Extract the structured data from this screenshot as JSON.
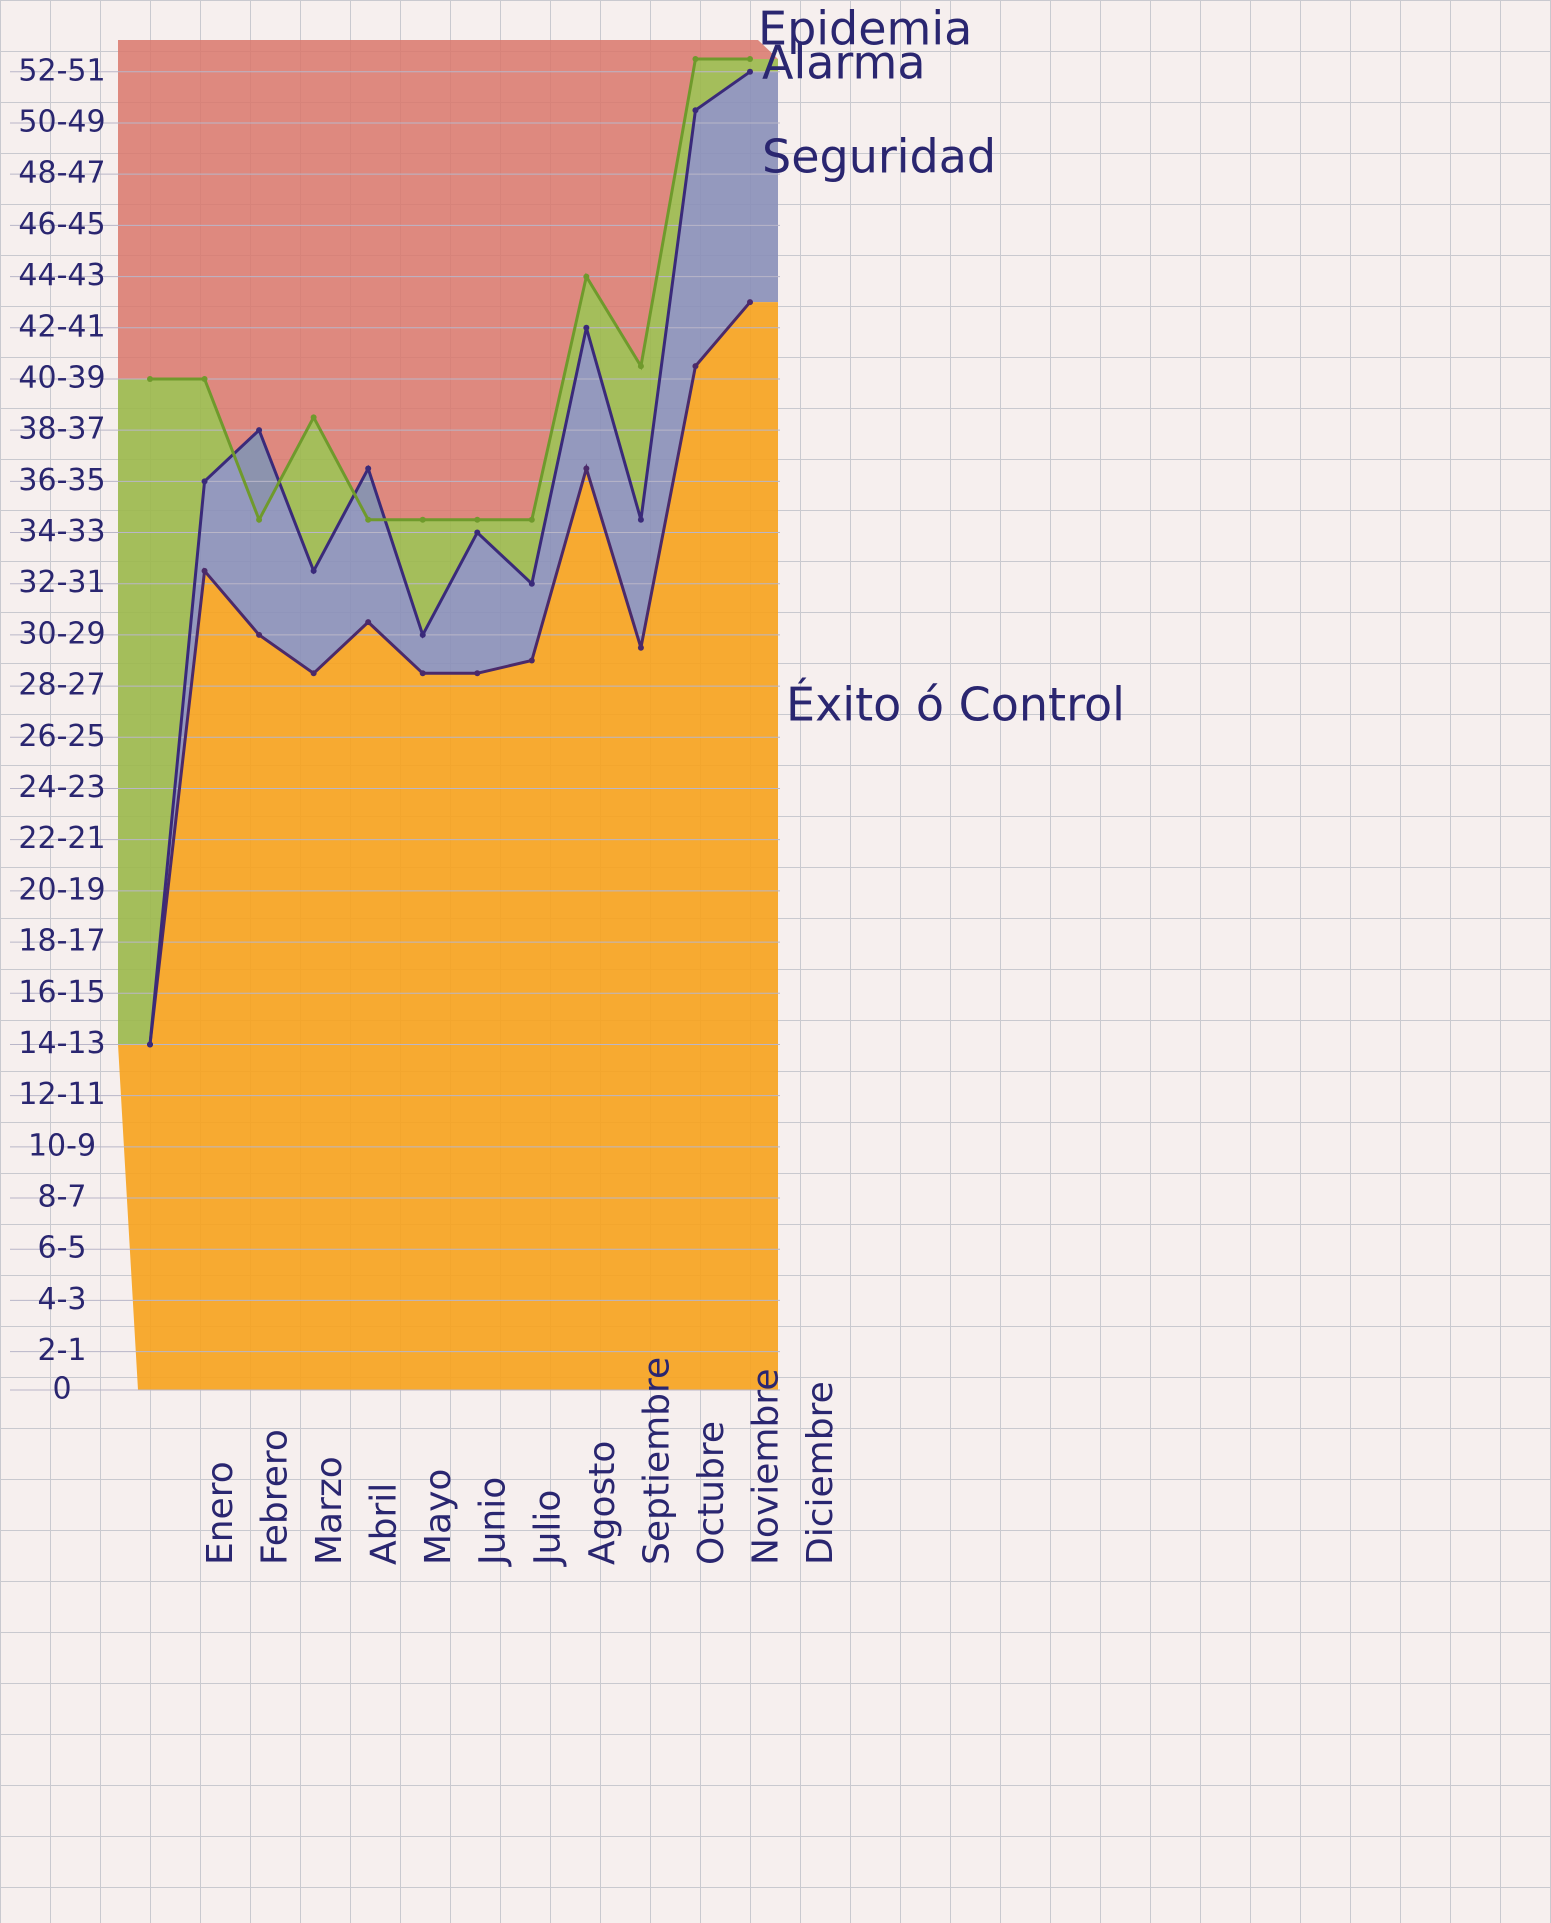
{
  "chart_data": {
    "type": "endemic-channel",
    "categories": [
      "Enero",
      "Febrero",
      "Marzo",
      "Abril",
      "Mayo",
      "Junio",
      "Julio",
      "Agosto",
      "Septiembre",
      "Octubre",
      "Noviembre",
      "Diciembre"
    ],
    "series": [
      {
        "name": "Éxito ó Control",
        "color": "#f7a21c",
        "values": [
          13.5,
          32,
          29.5,
          28,
          30,
          28,
          28,
          28.5,
          36,
          29,
          40,
          42.5
        ]
      },
      {
        "name": "Seguridad",
        "color": "#8a8fb8",
        "values": [
          13.5,
          35.5,
          37.5,
          32,
          36,
          29.5,
          33.5,
          31.5,
          41.5,
          34,
          50,
          51.5
        ]
      },
      {
        "name": "Alarma",
        "color": "#9bb84a",
        "values": [
          39.5,
          39.5,
          34,
          38,
          34,
          34,
          34,
          34,
          43.5,
          40,
          52,
          52
        ]
      }
    ],
    "epidemic_zone": {
      "name": "Epidemia",
      "color": "#d9776b"
    },
    "ylim": [
      0,
      52
    ],
    "yticks": [
      {
        "value": 0,
        "label": "0"
      },
      {
        "value": 1.5,
        "label": "2-1"
      },
      {
        "value": 3.5,
        "label": "4-3"
      },
      {
        "value": 5.5,
        "label": "6-5"
      },
      {
        "value": 7.5,
        "label": "8-7"
      },
      {
        "value": 9.5,
        "label": "10-9"
      },
      {
        "value": 11.5,
        "label": "12-11"
      },
      {
        "value": 13.5,
        "label": "14-13"
      },
      {
        "value": 15.5,
        "label": "16-15"
      },
      {
        "value": 17.5,
        "label": "18-17"
      },
      {
        "value": 19.5,
        "label": "20-19"
      },
      {
        "value": 21.5,
        "label": "22-21"
      },
      {
        "value": 23.5,
        "label": "24-23"
      },
      {
        "value": 25.5,
        "label": "26-25"
      },
      {
        "value": 27.5,
        "label": "28-27"
      },
      {
        "value": 29.5,
        "label": "30-29"
      },
      {
        "value": 31.5,
        "label": "32-31"
      },
      {
        "value": 33.5,
        "label": "34-33"
      },
      {
        "value": 35.5,
        "label": "36-35"
      },
      {
        "value": 37.5,
        "label": "38-37"
      },
      {
        "value": 39.5,
        "label": "40-39"
      },
      {
        "value": 41.5,
        "label": "42-41"
      },
      {
        "value": 43.5,
        "label": "44-43"
      },
      {
        "value": 45.5,
        "label": "46-45"
      },
      {
        "value": 47.5,
        "label": "48-47"
      },
      {
        "value": 49.5,
        "label": "50-49"
      },
      {
        "value": 51.5,
        "label": "52-51"
      }
    ],
    "grid": true
  }
}
